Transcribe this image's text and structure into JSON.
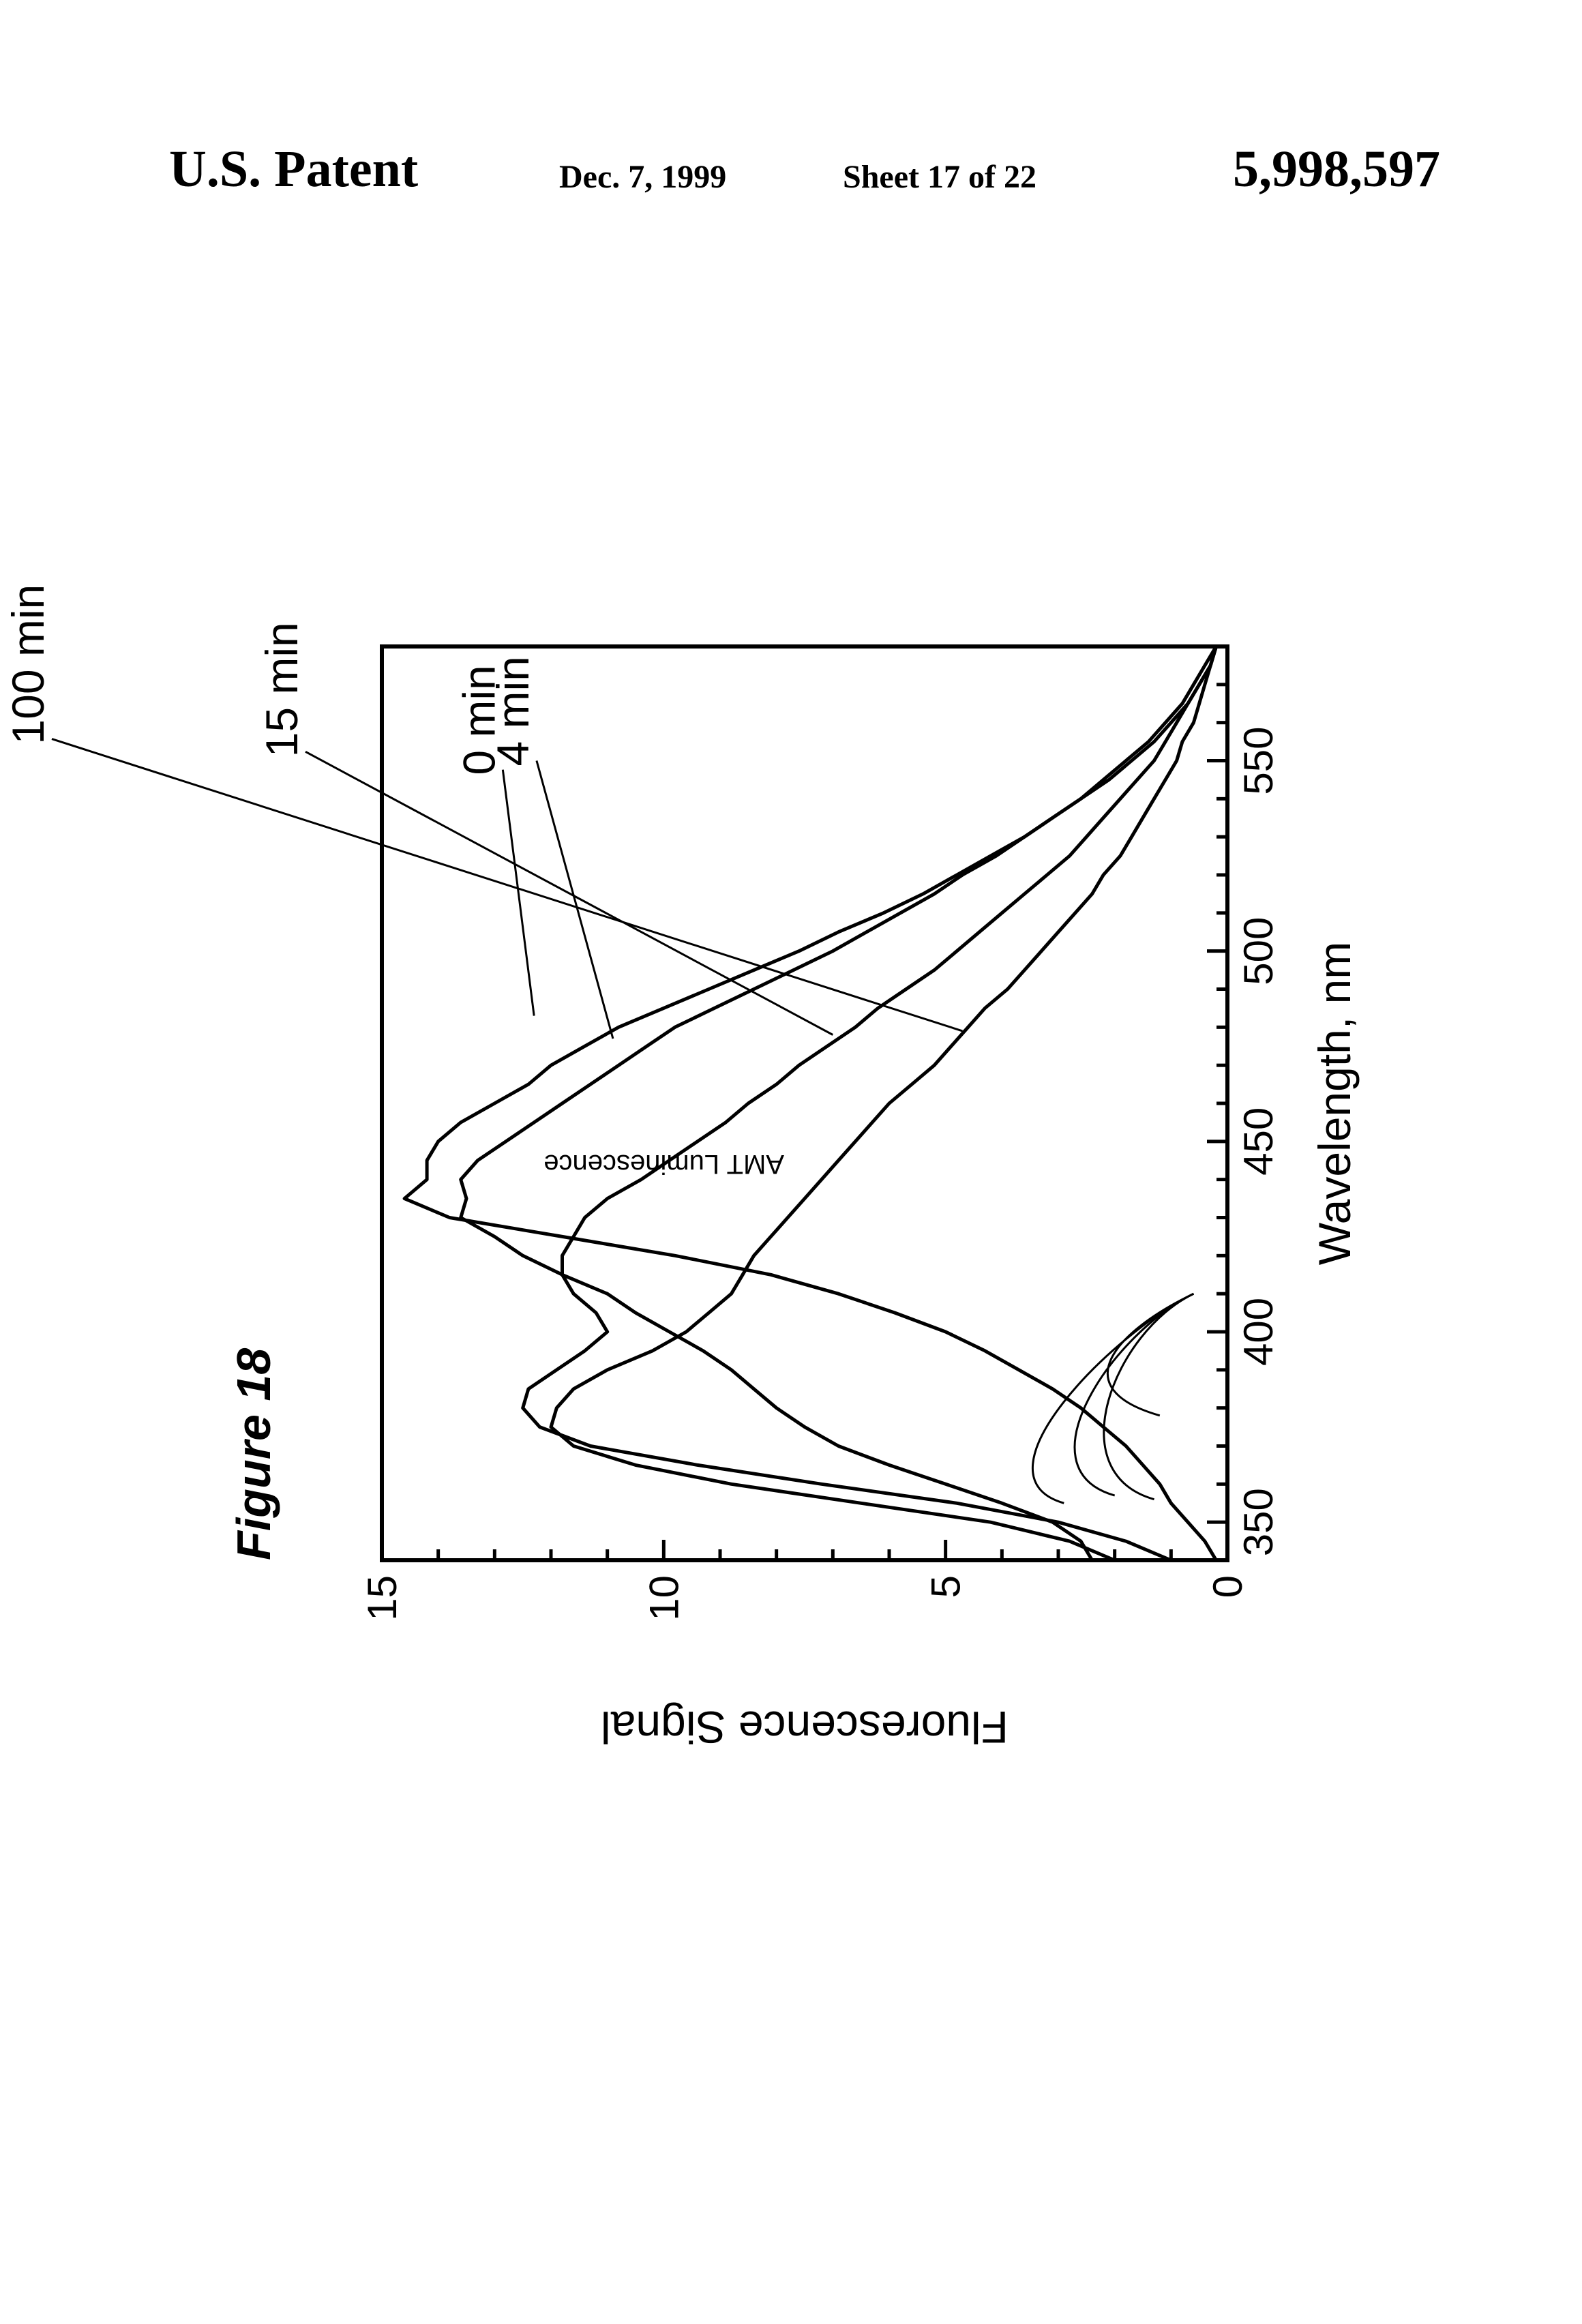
{
  "header": {
    "left": "U.S. Patent",
    "date": "Dec. 7, 1999",
    "sheet": "Sheet 17 of 22",
    "patent_number": "5,998,597"
  },
  "chart_data": {
    "type": "line",
    "title": "Figure 18",
    "xlabel": "Wavelength, nm",
    "ylabel": "Fluorescence Signal",
    "xlim": [
      340,
      580
    ],
    "ylim": [
      0,
      15
    ],
    "x_ticks": [
      "350",
      "400",
      "450",
      "500",
      "550"
    ],
    "y_ticks": [
      "0",
      "5",
      "10",
      "15"
    ],
    "grid": false,
    "annotations": [
      "AMT Luminescence"
    ],
    "series": [
      {
        "name": "0 min",
        "x": [
          340,
          345,
          350,
          355,
          360,
          365,
          370,
          375,
          380,
          385,
          390,
          395,
          400,
          405,
          410,
          415,
          420,
          425,
          430,
          435,
          440,
          445,
          450,
          455,
          460,
          465,
          470,
          475,
          480,
          485,
          490,
          495,
          500,
          505,
          510,
          515,
          520,
          525,
          530,
          535,
          540,
          545,
          550,
          555,
          560,
          565,
          570,
          575,
          580
        ],
        "y": [
          0.2,
          0.4,
          0.7,
          1.0,
          1.2,
          1.5,
          1.8,
          2.2,
          2.6,
          3.1,
          3.7,
          4.3,
          5.0,
          5.9,
          6.9,
          8.1,
          9.8,
          11.8,
          13.8,
          14.6,
          14.2,
          14.2,
          14.0,
          13.6,
          13.0,
          12.4,
          12.0,
          11.4,
          10.8,
          10.0,
          9.2,
          8.4,
          7.6,
          6.9,
          6.1,
          5.4,
          4.8,
          4.2,
          3.6,
          3.1,
          2.6,
          2.1,
          1.7,
          1.3,
          1.0,
          0.7,
          0.5,
          0.3,
          0.2
        ]
      },
      {
        "name": "4 min",
        "x": [
          340,
          345,
          350,
          355,
          360,
          365,
          370,
          375,
          380,
          385,
          390,
          395,
          400,
          405,
          410,
          415,
          420,
          425,
          430,
          435,
          440,
          445,
          450,
          455,
          460,
          465,
          470,
          475,
          480,
          485,
          490,
          495,
          500,
          505,
          510,
          515,
          520,
          525,
          530,
          535,
          540,
          545,
          550,
          555,
          560,
          565,
          570,
          575,
          580
        ],
        "y": [
          2.4,
          2.6,
          3.1,
          4.0,
          5.0,
          6.0,
          6.9,
          7.5,
          8.0,
          8.4,
          8.8,
          9.3,
          9.9,
          10.5,
          11.0,
          11.8,
          12.5,
          13.0,
          13.6,
          13.5,
          13.6,
          13.3,
          12.8,
          12.3,
          11.8,
          11.3,
          10.8,
          10.3,
          9.8,
          9.1,
          8.4,
          7.7,
          7.0,
          6.4,
          5.8,
          5.2,
          4.7,
          4.1,
          3.6,
          3.1,
          2.6,
          2.2,
          1.8,
          1.4,
          1.1,
          0.8,
          0.6,
          0.4,
          0.2
        ]
      },
      {
        "name": "15 min",
        "x": [
          340,
          345,
          350,
          355,
          360,
          365,
          370,
          375,
          380,
          385,
          390,
          395,
          400,
          405,
          410,
          415,
          420,
          425,
          430,
          435,
          440,
          445,
          450,
          455,
          460,
          465,
          470,
          475,
          480,
          485,
          490,
          495,
          500,
          505,
          510,
          515,
          520,
          525,
          530,
          535,
          540,
          545,
          550,
          555,
          560,
          565,
          570,
          575,
          580
        ],
        "y": [
          1.0,
          1.8,
          3.0,
          4.8,
          7.2,
          9.4,
          11.3,
          12.2,
          12.5,
          12.4,
          11.9,
          11.4,
          11.0,
          11.2,
          11.6,
          11.8,
          11.8,
          11.6,
          11.4,
          11.0,
          10.4,
          9.9,
          9.4,
          8.9,
          8.5,
          8.0,
          7.6,
          7.1,
          6.6,
          6.2,
          5.7,
          5.2,
          4.8,
          4.4,
          4.0,
          3.6,
          3.2,
          2.8,
          2.5,
          2.2,
          1.9,
          1.6,
          1.3,
          1.1,
          0.9,
          0.7,
          0.5,
          0.3,
          0.2
        ]
      },
      {
        "name": "100 min",
        "x": [
          340,
          345,
          350,
          355,
          360,
          365,
          370,
          375,
          380,
          385,
          390,
          395,
          400,
          405,
          410,
          415,
          420,
          425,
          430,
          435,
          440,
          445,
          450,
          455,
          460,
          465,
          470,
          475,
          480,
          485,
          490,
          495,
          500,
          505,
          510,
          515,
          520,
          525,
          530,
          535,
          540,
          545,
          550,
          555,
          560,
          565,
          570,
          575,
          580
        ],
        "y": [
          2.0,
          2.8,
          4.2,
          6.5,
          8.8,
          10.5,
          11.6,
          12.0,
          11.9,
          11.6,
          11.0,
          10.2,
          9.6,
          9.2,
          8.8,
          8.6,
          8.4,
          8.1,
          7.8,
          7.5,
          7.2,
          6.9,
          6.6,
          6.3,
          6.0,
          5.6,
          5.2,
          4.9,
          4.6,
          4.3,
          3.9,
          3.6,
          3.3,
          3.0,
          2.7,
          2.4,
          2.2,
          1.9,
          1.7,
          1.5,
          1.3,
          1.1,
          0.9,
          0.8,
          0.6,
          0.5,
          0.4,
          0.3,
          0.2
        ]
      }
    ]
  }
}
